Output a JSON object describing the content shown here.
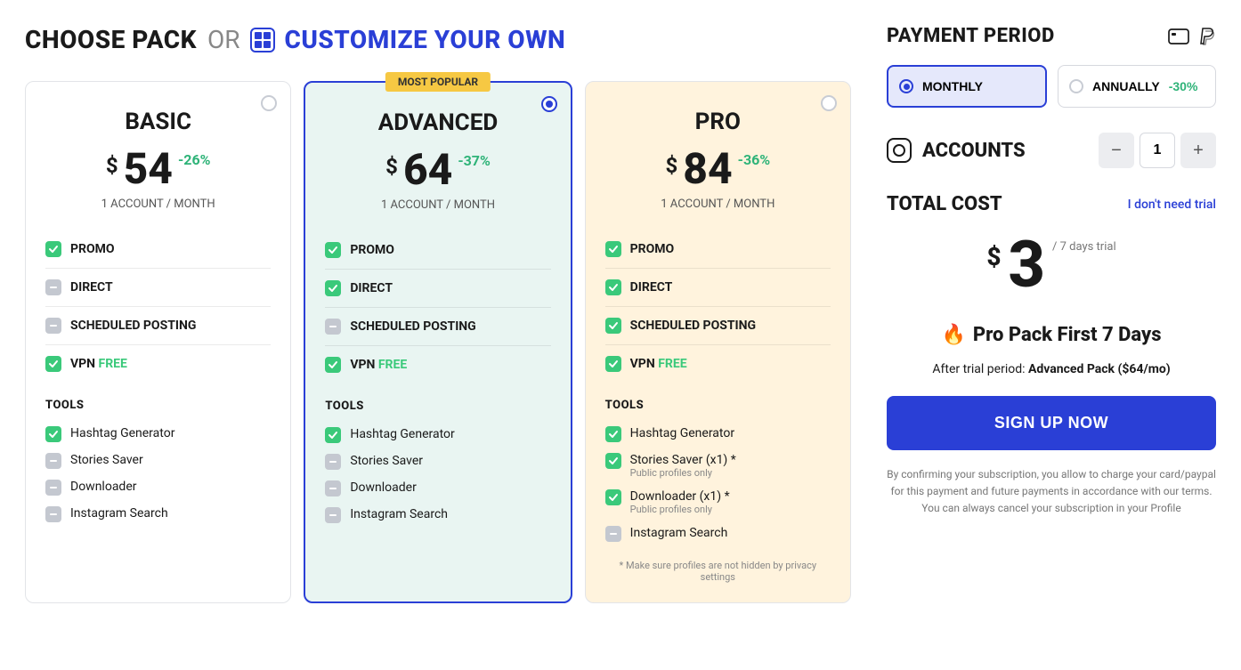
{
  "header": {
    "choose": "CHOOSE PACK",
    "or": "OR",
    "customize": "CUSTOMIZE YOUR OWN"
  },
  "packs": {
    "basic": {
      "name": "BASIC",
      "price": "54",
      "discount": "-26%",
      "per": "1 ACCOUNT / MONTH",
      "selected": false,
      "features": [
        {
          "label": "PROMO",
          "on": true
        },
        {
          "label": "DIRECT",
          "on": false
        },
        {
          "label": "SCHEDULED POSTING",
          "on": false
        },
        {
          "label": "VPN",
          "on": true,
          "free": "FREE"
        }
      ],
      "tools": [
        {
          "label": "Hashtag Generator",
          "on": true
        },
        {
          "label": "Stories Saver",
          "on": false
        },
        {
          "label": "Downloader",
          "on": false
        },
        {
          "label": "Instagram Search",
          "on": false
        }
      ]
    },
    "advanced": {
      "name": "ADVANCED",
      "badge": "MOST POPULAR",
      "price": "64",
      "discount": "-37%",
      "per": "1 ACCOUNT / MONTH",
      "selected": true,
      "features": [
        {
          "label": "PROMO",
          "on": true
        },
        {
          "label": "DIRECT",
          "on": true
        },
        {
          "label": "SCHEDULED POSTING",
          "on": false
        },
        {
          "label": "VPN",
          "on": true,
          "free": "FREE"
        }
      ],
      "tools": [
        {
          "label": "Hashtag Generator",
          "on": true
        },
        {
          "label": "Stories Saver",
          "on": false
        },
        {
          "label": "Downloader",
          "on": false
        },
        {
          "label": "Instagram Search",
          "on": false
        }
      ]
    },
    "pro": {
      "name": "PRO",
      "price": "84",
      "discount": "-36%",
      "per": "1 ACCOUNT / MONTH",
      "selected": false,
      "features": [
        {
          "label": "PROMO",
          "on": true
        },
        {
          "label": "DIRECT",
          "on": true
        },
        {
          "label": "SCHEDULED POSTING",
          "on": true
        },
        {
          "label": "VPN",
          "on": true,
          "free": "FREE"
        }
      ],
      "tools": [
        {
          "label": "Hashtag Generator",
          "on": true
        },
        {
          "label": "Stories Saver (x1) *",
          "on": true,
          "sub": "Public profiles only"
        },
        {
          "label": "Downloader (x1) *",
          "on": true,
          "sub": "Public profiles only"
        },
        {
          "label": "Instagram Search",
          "on": false
        }
      ],
      "footnote": "* Make sure profiles are not hidden by privacy settings"
    }
  },
  "tools_header": "TOOLS",
  "payment": {
    "title": "PAYMENT PERIOD",
    "monthly": "MONTHLY",
    "annually": "ANNUALLY",
    "ann_discount": "-30%",
    "selected": "monthly"
  },
  "accounts": {
    "label": "ACCOUNTS",
    "value": "1"
  },
  "total": {
    "title": "TOTAL COST",
    "no_trial": "I don't need trial",
    "price": "3",
    "per": "/ 7 days trial",
    "headline": "Pro Pack First 7 Days",
    "after_prefix": "After trial period: ",
    "after_bold": "Advanced Pack ($64/mo)",
    "signup": "SIGN UP NOW",
    "disclaimer": "By confirming your subscription, you allow to charge your card/paypal for this payment and future payments in accordance with our terms. You can always cancel your subscription in your Profile"
  }
}
